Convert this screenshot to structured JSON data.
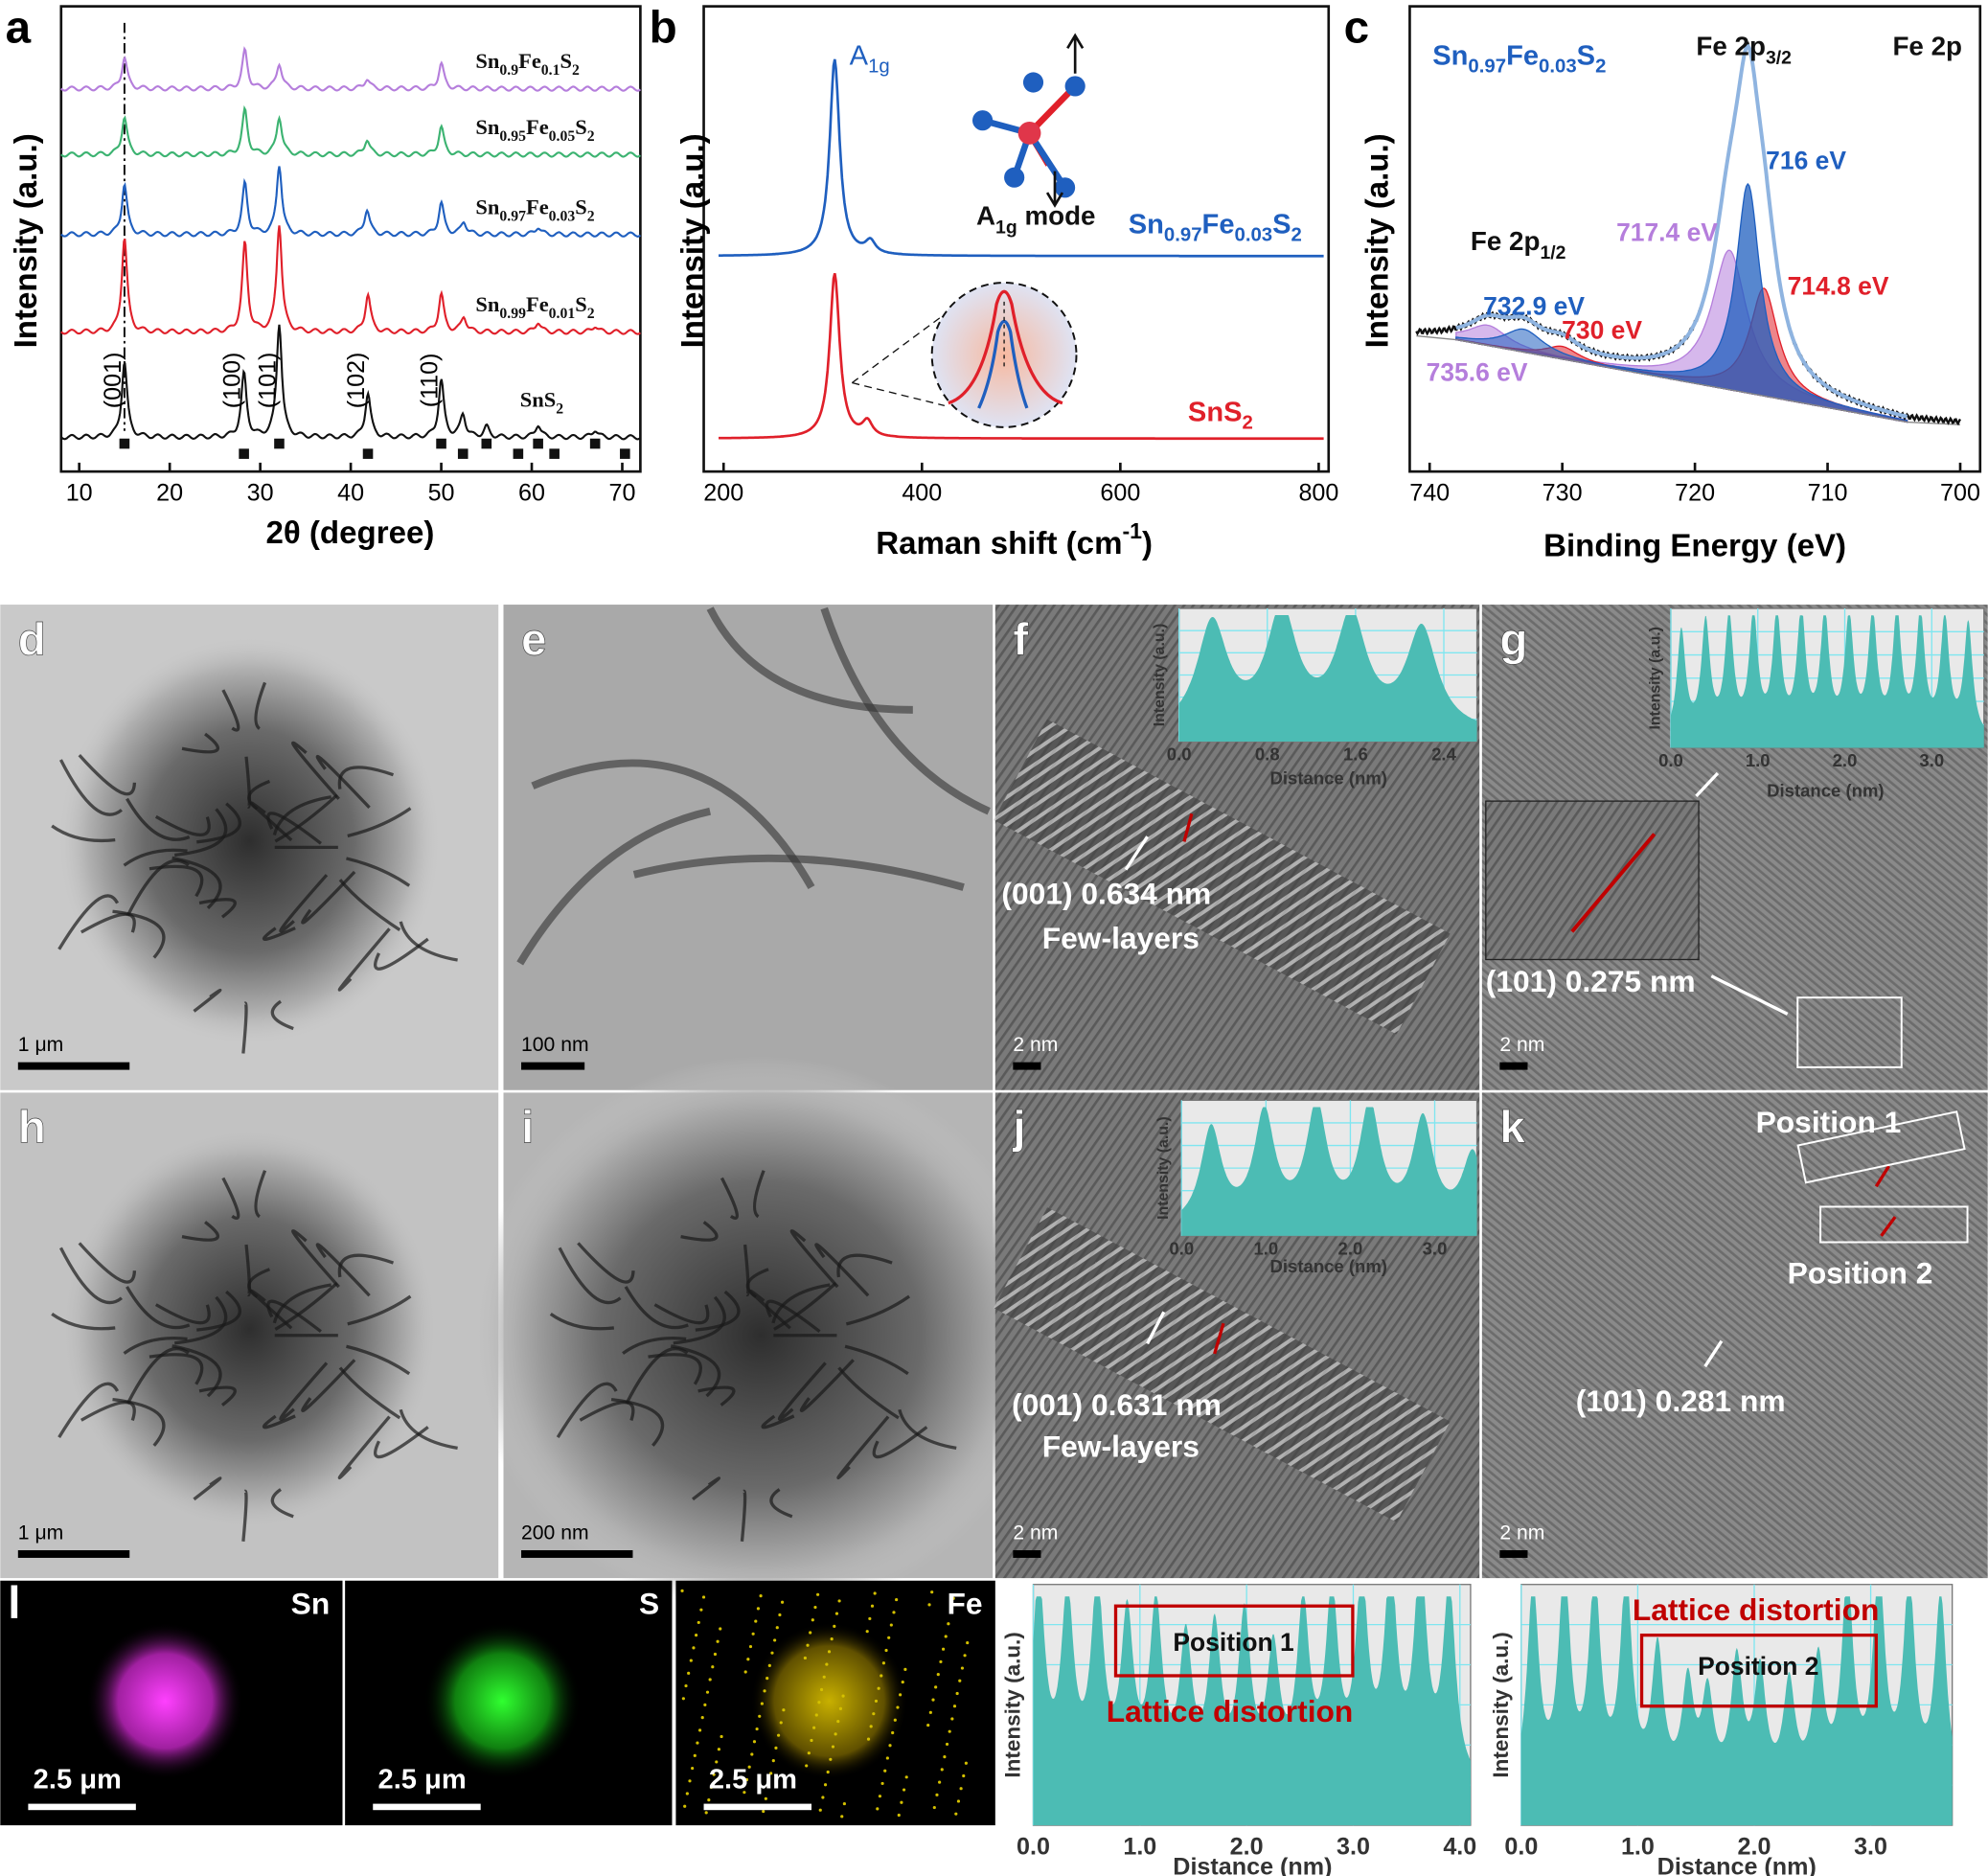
{
  "panel_a": {
    "label": "a",
    "type": "line",
    "xlabel": "2θ (degree)",
    "ylabel": "Intensity (a.u.)",
    "xlim": [
      8,
      72
    ],
    "xticks": [
      10,
      20,
      30,
      40,
      50,
      60,
      70
    ],
    "width": 0.35,
    "series": [
      {
        "name": [
          "Sn",
          {
            "sub": "0.9"
          },
          "Fe",
          {
            "sub": "0.1"
          },
          "S",
          {
            "sub": "2"
          }
        ],
        "color": "#b57edc",
        "peaks": [
          15,
          28.3,
          32.1,
          41.8,
          50
        ],
        "heights": [
          25,
          30,
          20,
          8,
          20
        ]
      },
      {
        "name": [
          "Sn",
          {
            "sub": "0.95"
          },
          "Fe",
          {
            "sub": "0.05"
          },
          "S",
          {
            "sub": "2"
          }
        ],
        "color": "#3cb371",
        "peaks": [
          15,
          28.3,
          32.1,
          41.8,
          50
        ],
        "heights": [
          30,
          35,
          30,
          12,
          22
        ]
      },
      {
        "name": [
          "Sn",
          {
            "sub": "0.97"
          },
          "Fe",
          {
            "sub": "0.03"
          },
          "S",
          {
            "sub": "2"
          }
        ],
        "color": "#1f5fbf",
        "peaks": [
          15,
          28.3,
          32.1,
          41.8,
          50,
          52.5,
          60.7
        ],
        "heights": [
          40,
          40,
          55,
          20,
          25,
          10,
          6
        ]
      },
      {
        "name": [
          "Sn",
          {
            "sub": "0.99"
          },
          "Fe",
          {
            "sub": "0.01"
          },
          "S",
          {
            "sub": "2"
          }
        ],
        "color": "#e0202a",
        "peaks": [
          15,
          28.3,
          32.1,
          41.9,
          50,
          52.5,
          60.7,
          67
        ],
        "heights": [
          75,
          70,
          85,
          30,
          30,
          12,
          8,
          5
        ]
      },
      {
        "name": [
          "SnS",
          {
            "sub": "2"
          }
        ],
        "color": "#111111",
        "peaks": [
          15,
          28.2,
          32.1,
          41.9,
          50,
          52.4,
          55,
          60.7,
          67
        ],
        "heights": [
          60,
          50,
          90,
          35,
          45,
          18,
          8,
          10,
          6
        ]
      }
    ],
    "reference": [
      15,
      28.2,
      32.1,
      41.9,
      50,
      52.4,
      55,
      58.5,
      60.7,
      62.5,
      67,
      70.3
    ],
    "hkl_labels": [
      "(001)",
      "(100)",
      "(101)",
      "(102)",
      "(110)"
    ]
  },
  "panel_b": {
    "label": "b",
    "type": "line",
    "xlabel": [
      "Raman shift (cm",
      {
        "sup": "-1"
      },
      ")"
    ],
    "ylabel": "Intensity (a.u.)",
    "xlim": [
      180,
      810
    ],
    "xticks": [
      200,
      400,
      600,
      800
    ],
    "width": 6,
    "series": [
      {
        "name": [
          "Sn",
          {
            "sub": "0.97"
          },
          "Fe",
          {
            "sub": "0.03"
          },
          "S",
          {
            "sub": "2"
          }
        ],
        "color": "#1f5fbf",
        "peaks": [
          312,
          348
        ],
        "heights": [
          155,
          10
        ]
      },
      {
        "name": [
          "SnS",
          {
            "sub": "2"
          }
        ],
        "color": "#e0202a",
        "peaks": [
          312,
          345
        ],
        "heights": [
          130,
          12
        ]
      }
    ],
    "peak_label": [
      "A",
      {
        "sub": "1g"
      }
    ],
    "mode_label": [
      "A",
      {
        "sub": "1g"
      },
      " mode"
    ]
  },
  "panel_c": {
    "label": "c",
    "type": "xps",
    "xlabel": "Binding Energy (eV)",
    "ylabel": "Intensity (a.u.)",
    "xlim": [
      741.5,
      698.5
    ],
    "xticks": [
      740,
      730,
      720,
      710,
      700
    ],
    "sample": [
      "Sn",
      {
        "sub": "0.97"
      },
      "Fe",
      {
        "sub": "0.03"
      },
      "S",
      {
        "sub": "2"
      }
    ],
    "region": "Fe 2p",
    "main_label": [
      "Fe 2p",
      {
        "sub": "3/2"
      }
    ],
    "minor_label": [
      "Fe 2p",
      {
        "sub": "1/2"
      }
    ],
    "background": {
      "x": [
        741,
        738,
        704,
        700
      ],
      "values": [
        70,
        67,
        2,
        0
      ]
    },
    "components": {
      "peaks": [
        716,
        717.4,
        714.8,
        732.9,
        730,
        735.6
      ],
      "heights": [
        165,
        110,
        85,
        18,
        10,
        16
      ],
      "widths": [
        1.1,
        1.6,
        1.3,
        1.8,
        1.5,
        1.8
      ],
      "colors": [
        "#1f5fbf",
        "#b57edc",
        "#e0202a",
        "#1f5fbf",
        "#e0202a",
        "#b57edc"
      ],
      "value_labels": [
        "716 eV",
        "717.4 eV",
        "714.8 eV",
        "732.9 eV",
        "730 eV",
        "735.6 eV"
      ]
    }
  },
  "images": [
    {
      "label": "d",
      "scale": "1 μm"
    },
    {
      "label": "e",
      "scale": "100 nm"
    },
    {
      "label": "f",
      "scale": "2 nm",
      "notes": [
        "(001)  0.634 nm",
        "Few-layers"
      ]
    },
    {
      "label": "g",
      "scale": "2 nm",
      "notes": [
        "(101)   0.275 nm"
      ]
    },
    {
      "label": "h",
      "scale": "1 μm"
    },
    {
      "label": "i",
      "scale": "200 nm"
    },
    {
      "label": "j",
      "scale": "2 nm",
      "notes": [
        "(001)  0.631 nm",
        "Few-layers"
      ]
    },
    {
      "label": "k",
      "scale": "2 nm",
      "notes": [
        "Position 1",
        "Position 2",
        "(101)  0.281 nm"
      ]
    }
  ],
  "maps": {
    "label": "l",
    "scale": "2.5 μm",
    "elements": [
      "Sn",
      "S",
      "Fe"
    ]
  },
  "profiles": [
    {
      "type": "area",
      "xlabel": "Distance (nm)",
      "ylabel": "Intensity (a.u.)",
      "xlim": [
        0,
        2.7
      ],
      "xticks": [
        {
          "value": 0,
          "label": "0.0"
        },
        {
          "value": 0.8,
          "label": "0.8"
        },
        {
          "value": 1.6,
          "label": "1.6"
        },
        {
          "value": 2.4,
          "label": "2.4"
        }
      ],
      "peaks": [
        0.3,
        0.93,
        1.56,
        2.2
      ],
      "heights": [
        0.85,
        0.92,
        0.88,
        0.8
      ],
      "width": 0.17,
      "baseline": 0.05
    },
    {
      "type": "area",
      "xlabel": "Distance (nm)",
      "ylabel": "Intensity (a.u.)",
      "xlim": [
        0,
        3.6
      ],
      "xticks": [
        {
          "value": 0,
          "label": "0.0"
        },
        {
          "value": 1,
          "label": "1.0"
        },
        {
          "value": 2,
          "label": "2.0"
        },
        {
          "value": 3,
          "label": "3.0"
        }
      ],
      "peaks": [
        0.12,
        0.4,
        0.67,
        0.95,
        1.22,
        1.5,
        1.77,
        2.05,
        2.32,
        2.6,
        2.87,
        3.15,
        3.42
      ],
      "heights": [
        0.8,
        0.85,
        0.88,
        0.9,
        0.9,
        0.92,
        0.9,
        0.88,
        0.9,
        0.92,
        0.9,
        0.88,
        0.85
      ],
      "width": 0.06,
      "baseline": 0.05
    },
    {
      "type": "area",
      "xlabel": "Distance (nm)",
      "ylabel": "Intensity (a.u.)",
      "xlim": [
        0,
        3.5
      ],
      "xticks": [
        {
          "value": 0,
          "label": "0.0"
        },
        {
          "value": 1,
          "label": "1.0"
        },
        {
          "value": 2,
          "label": "2.0"
        },
        {
          "value": 3,
          "label": "3.0"
        }
      ],
      "peaks": [
        0.35,
        0.98,
        1.6,
        2.23,
        2.86,
        3.45
      ],
      "heights": [
        0.75,
        0.85,
        0.9,
        0.9,
        0.8,
        0.55
      ],
      "width": 0.15,
      "baseline": 0.05
    },
    {
      "type": "area",
      "xlabel": "Distance (nm)",
      "ylabel": "Intensity (a.u.)",
      "xlim": [
        0,
        4.1
      ],
      "xticks": [
        {
          "value": 0,
          "label": "0.0"
        },
        {
          "value": 1,
          "label": "1.0"
        },
        {
          "value": 2,
          "label": "2.0"
        },
        {
          "value": 3,
          "label": "3.0"
        },
        {
          "value": 4,
          "label": "4.0"
        }
      ],
      "peaks": [
        0.05,
        0.32,
        0.6,
        0.88,
        1.15,
        1.43,
        1.7,
        1.98,
        2.25,
        2.53,
        2.8,
        3.08,
        3.35,
        3.63,
        3.9
      ],
      "heights": [
        0.9,
        0.8,
        0.85,
        0.7,
        0.75,
        0.6,
        0.65,
        0.7,
        0.55,
        0.75,
        0.8,
        0.85,
        0.9,
        0.95,
        0.85
      ],
      "width": 0.07,
      "baseline": 0.15,
      "annotations": [
        "Position 1",
        "Lattice distortion"
      ]
    },
    {
      "type": "area",
      "xlabel": "Distance (nm)",
      "ylabel": "Intensity (a.u.)",
      "xlim": [
        0,
        3.7
      ],
      "xticks": [
        {
          "value": 0,
          "label": "0.0"
        },
        {
          "value": 1,
          "label": "1.0"
        },
        {
          "value": 2,
          "label": "2.0"
        },
        {
          "value": 3,
          "label": "3.0"
        }
      ],
      "peaks": [
        0.1,
        0.37,
        0.63,
        0.9,
        1.17,
        1.43,
        1.6,
        1.85,
        2.05,
        2.3,
        2.55,
        2.8,
        3.07,
        3.33,
        3.6
      ],
      "heights": [
        0.9,
        0.95,
        0.9,
        0.92,
        0.6,
        0.45,
        0.4,
        0.55,
        0.5,
        0.45,
        0.55,
        0.9,
        0.95,
        0.9,
        0.85
      ],
      "width": 0.06,
      "baseline": 0.12,
      "annotations": [
        "Lattice distortion",
        "Position 2"
      ]
    }
  ]
}
